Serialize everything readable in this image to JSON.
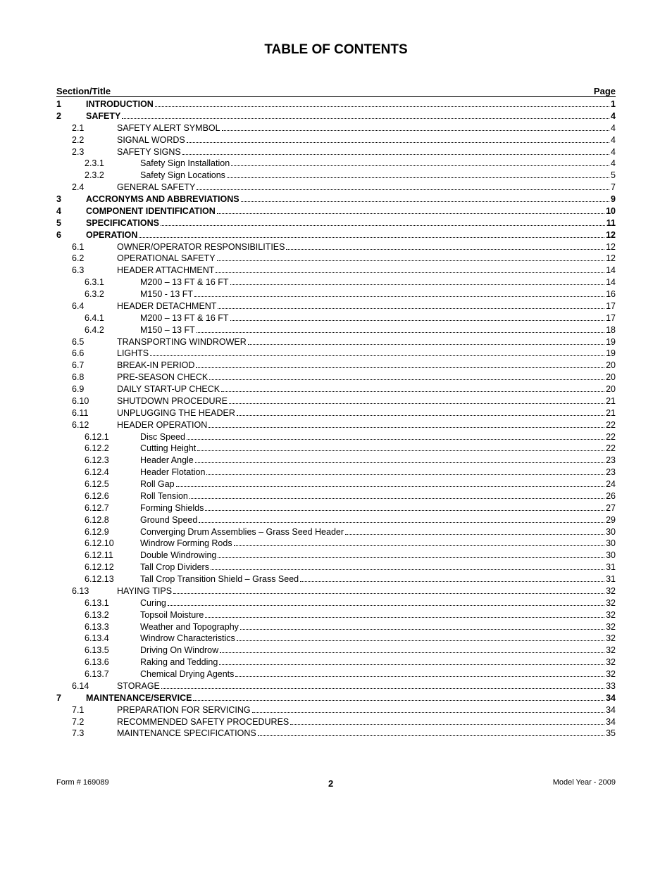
{
  "title": "TABLE OF CONTENTS",
  "header_left": "Section/Title",
  "header_right": "Page",
  "footer_left": "Form # 169089",
  "footer_center": "2",
  "footer_right": "Model Year - 2009",
  "entries": [
    {
      "level": 1,
      "num": "1",
      "title": "INTRODUCTION",
      "page": "1"
    },
    {
      "level": 1,
      "num": "2",
      "title": "SAFETY",
      "page": "4"
    },
    {
      "level": 2,
      "num": "2.1",
      "title": "SAFETY ALERT SYMBOL",
      "page": "4"
    },
    {
      "level": 2,
      "num": "2.2",
      "title": "SIGNAL WORDS",
      "page": "4"
    },
    {
      "level": 2,
      "num": "2.3",
      "title": "SAFETY SIGNS",
      "page": "4"
    },
    {
      "level": 3,
      "num": "2.3.1",
      "title": "Safety Sign Installation",
      "page": "4"
    },
    {
      "level": 3,
      "num": "2.3.2",
      "title": "Safety Sign Locations",
      "page": "5"
    },
    {
      "level": 2,
      "num": "2.4",
      "title": "GENERAL SAFETY",
      "page": "7"
    },
    {
      "level": 1,
      "num": "3",
      "title": "ACCRONYMS AND ABBREVIATIONS",
      "page": "9"
    },
    {
      "level": 1,
      "num": "4",
      "title": "COMPONENT IDENTIFICATION",
      "page": "10"
    },
    {
      "level": 1,
      "num": "5",
      "title": "SPECIFICATIONS",
      "page": "11"
    },
    {
      "level": 1,
      "num": "6",
      "title": "OPERATION",
      "page": "12"
    },
    {
      "level": 2,
      "num": "6.1",
      "title": "OWNER/OPERATOR RESPONSIBILITIES",
      "page": "12"
    },
    {
      "level": 2,
      "num": "6.2",
      "title": "OPERATIONAL SAFETY",
      "page": "12"
    },
    {
      "level": 2,
      "num": "6.3",
      "title": "HEADER ATTACHMENT",
      "page": "14"
    },
    {
      "level": 3,
      "num": "6.3.1",
      "title": "M200 – 13 FT & 16 FT",
      "page": "14"
    },
    {
      "level": 3,
      "num": "6.3.2",
      "title": "M150 - 13 FT",
      "page": "16"
    },
    {
      "level": 2,
      "num": "6.4",
      "title": "HEADER DETACHMENT",
      "page": "17"
    },
    {
      "level": 3,
      "num": "6.4.1",
      "title": "M200 – 13 FT & 16 FT",
      "page": "17"
    },
    {
      "level": 3,
      "num": "6.4.2",
      "title": "M150 – 13 FT",
      "page": "18"
    },
    {
      "level": 2,
      "num": "6.5",
      "title": "TRANSPORTING WINDROWER",
      "page": "19"
    },
    {
      "level": 2,
      "num": "6.6",
      "title": "LIGHTS",
      "page": "19"
    },
    {
      "level": 2,
      "num": "6.7",
      "title": "BREAK-IN PERIOD",
      "page": "20"
    },
    {
      "level": 2,
      "num": "6.8",
      "title": "PRE-SEASON CHECK",
      "page": "20"
    },
    {
      "level": 2,
      "num": "6.9",
      "title": "DAILY START-UP CHECK",
      "page": "20"
    },
    {
      "level": 2,
      "num": "6.10",
      "title": "SHUTDOWN PROCEDURE",
      "page": "21"
    },
    {
      "level": 2,
      "num": "6.11",
      "title": "UNPLUGGING THE HEADER",
      "page": "21"
    },
    {
      "level": 2,
      "num": "6.12",
      "title": "HEADER OPERATION",
      "page": "22"
    },
    {
      "level": 3,
      "num": "6.12.1",
      "title": "Disc Speed",
      "page": "22"
    },
    {
      "level": 3,
      "num": "6.12.2",
      "title": "Cutting Height",
      "page": "22"
    },
    {
      "level": 3,
      "num": "6.12.3",
      "title": "Header Angle",
      "page": "23"
    },
    {
      "level": 3,
      "num": "6.12.4",
      "title": "Header Flotation",
      "page": "23"
    },
    {
      "level": 3,
      "num": "6.12.5",
      "title": "Roll Gap",
      "page": "24"
    },
    {
      "level": 3,
      "num": "6.12.6",
      "title": "Roll Tension",
      "page": "26"
    },
    {
      "level": 3,
      "num": "6.12.7",
      "title": "Forming Shields",
      "page": "27"
    },
    {
      "level": 3,
      "num": "6.12.8",
      "title": "Ground Speed",
      "page": "29"
    },
    {
      "level": 3,
      "num": "6.12.9",
      "title": "Converging Drum Assemblies – Grass Seed Header",
      "page": "30"
    },
    {
      "level": 3,
      "num": "6.12.10",
      "title": "Windrow Forming Rods",
      "page": "30"
    },
    {
      "level": 3,
      "num": "6.12.11",
      "title": "Double Windrowing",
      "page": "30"
    },
    {
      "level": 3,
      "num": "6.12.12",
      "title": "Tall Crop Dividers",
      "page": "31"
    },
    {
      "level": 3,
      "num": "6.12.13",
      "title": "Tall Crop Transition Shield – Grass Seed",
      "page": "31"
    },
    {
      "level": 2,
      "num": "6.13",
      "title": "HAYING TIPS",
      "page": "32"
    },
    {
      "level": 3,
      "num": "6.13.1",
      "title": "Curing",
      "page": "32"
    },
    {
      "level": 3,
      "num": "6.13.2",
      "title": "Topsoil Moisture",
      "page": "32"
    },
    {
      "level": 3,
      "num": "6.13.3",
      "title": "Weather and Topography",
      "page": "32"
    },
    {
      "level": 3,
      "num": "6.13.4",
      "title": "Windrow Characteristics",
      "page": "32"
    },
    {
      "level": 3,
      "num": "6.13.5",
      "title": "Driving On Windrow",
      "page": "32"
    },
    {
      "level": 3,
      "num": "6.13.6",
      "title": "Raking and Tedding",
      "page": "32"
    },
    {
      "level": 3,
      "num": "6.13.7",
      "title": "Chemical Drying Agents",
      "page": "32"
    },
    {
      "level": 2,
      "num": "6.14",
      "title": "STORAGE",
      "page": "33"
    },
    {
      "level": 1,
      "num": "7",
      "title": "MAINTENANCE/SERVICE",
      "page": "34"
    },
    {
      "level": 2,
      "num": "7.1",
      "title": "PREPARATION FOR SERVICING",
      "page": "34"
    },
    {
      "level": 2,
      "num": "7.2",
      "title": "RECOMMENDED SAFETY PROCEDURES",
      "page": "34"
    },
    {
      "level": 2,
      "num": "7.3",
      "title": "MAINTENANCE SPECIFICATIONS",
      "page": "35"
    }
  ]
}
